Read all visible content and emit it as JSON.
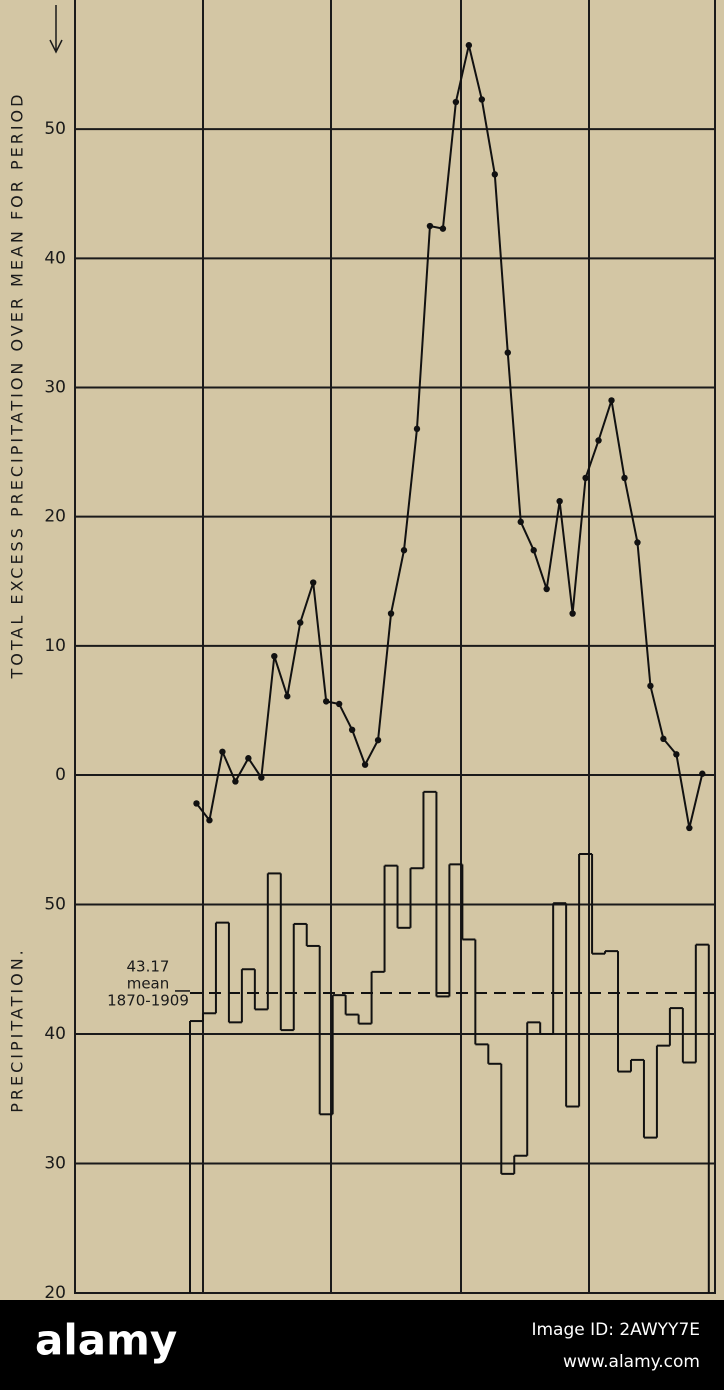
{
  "chart_data": [
    {
      "type": "line",
      "ylabel": "TOTAL EXCESS PRECIPITATION OVER MEAN FOR PERIOD",
      "values": [
        -2.2,
        -3.5,
        1.8,
        -0.5,
        1.3,
        -0.2,
        9.2,
        6.1,
        11.8,
        14.9,
        5.7,
        5.5,
        3.5,
        0.8,
        2.7,
        12.5,
        17.4,
        26.8,
        42.5,
        42.3,
        52.1,
        56.5,
        52.3,
        46.5,
        32.7,
        19.6,
        17.4,
        14.4,
        21.2,
        12.5,
        23.0,
        25.9,
        29.0,
        23.0,
        18.0,
        6.9,
        2.8,
        1.6,
        -4.1,
        0.1
      ],
      "color": "#111111",
      "ylim": [
        -5,
        60
      ],
      "yticks": [
        0,
        10,
        20,
        30,
        40,
        50
      ],
      "grid": true
    },
    {
      "type": "step",
      "ylabel": "PRECIPITATION.",
      "values": [
        41.0,
        41.6,
        48.6,
        40.9,
        45.0,
        41.9,
        52.4,
        40.3,
        48.5,
        46.8,
        33.8,
        43.0,
        41.5,
        40.8,
        44.8,
        53.0,
        48.2,
        52.8,
        58.7,
        42.9,
        53.1,
        47.3,
        39.2,
        37.7,
        29.2,
        30.6,
        40.9,
        40.0,
        50.1,
        34.4,
        53.9,
        46.2,
        46.4,
        37.1,
        38.0,
        32.0,
        39.1,
        42.0,
        37.8,
        46.9
      ],
      "color": "#111111",
      "mean": 43.17,
      "mean_label": [
        "mean",
        "1870-1909"
      ],
      "ylim": [
        20,
        60
      ],
      "yticks": [
        20,
        30,
        40,
        50
      ],
      "grid": true
    }
  ],
  "footer": {
    "logo": "alamy",
    "image_id": "Image ID: 2AWYY7E",
    "site": "www.alamy.com"
  }
}
